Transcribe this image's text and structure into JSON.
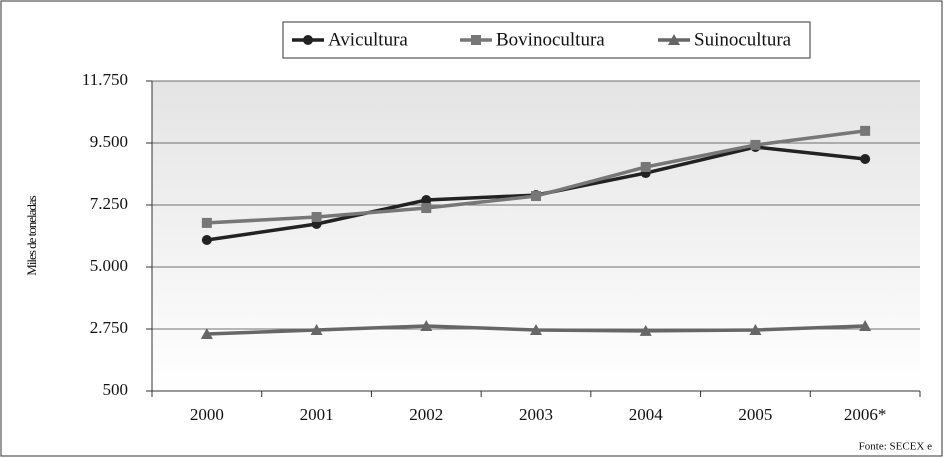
{
  "chart_data": {
    "type": "line",
    "y_label": "Miles de toneladas",
    "source": "Fonte: SECEX e",
    "categories": [
      "2000",
      "2001",
      "2002",
      "2003",
      "2004",
      "2005",
      "2006*"
    ],
    "series": [
      {
        "name": "Avicultura",
        "color": "#222222",
        "marker": "circle",
        "values": [
          5980,
          6560,
          7430,
          7610,
          8410,
          9355,
          8920
        ]
      },
      {
        "name": "Bovinocultura",
        "color": "#777777",
        "marker": "square",
        "values": [
          6600,
          6815,
          7140,
          7575,
          8630,
          9430,
          9940
        ]
      },
      {
        "name": "Suinocultura",
        "color": "#666666",
        "marker": "triangle",
        "values": [
          2570,
          2715,
          2860,
          2715,
          2680,
          2715,
          2860
        ]
      }
    ],
    "ylim": [
      500,
      11750
    ],
    "yticks": [
      500,
      {
        "value": 2750,
        "label": "2.750"
      },
      {
        "value": 5000,
        "label": "5.000"
      },
      {
        "value": 7250,
        "label": "7.250"
      },
      {
        "value": 9500,
        "label": "9.500"
      },
      {
        "value": 11750,
        "label": "11.750"
      }
    ],
    "grid": true,
    "legend": "top"
  }
}
